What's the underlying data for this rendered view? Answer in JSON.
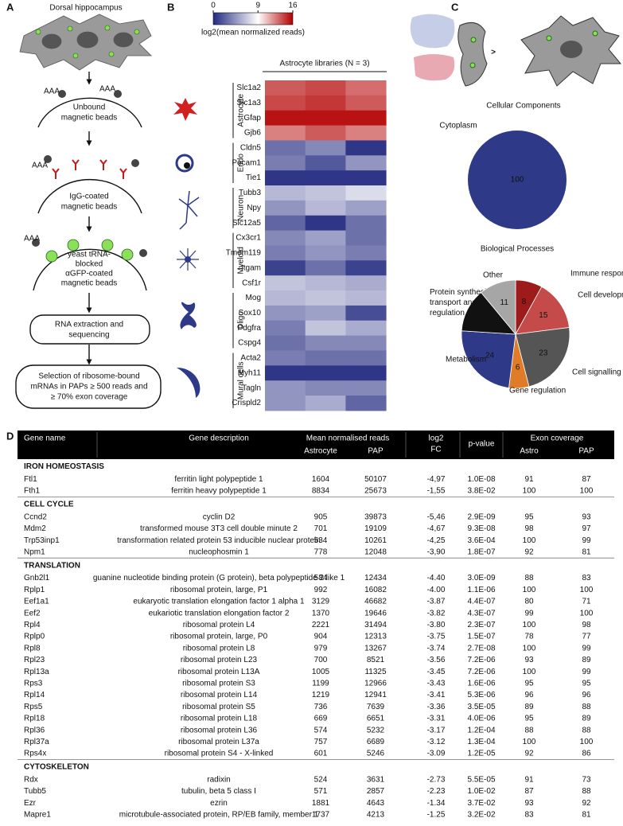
{
  "panel_a": {
    "label": "A",
    "title": "Dorsal hippocampus",
    "aaa": "AAA",
    "steps": [
      {
        "lines": [
          "Unbound",
          "magnetic beads"
        ]
      },
      {
        "lines": [
          "IgG-coated",
          "magnetic beads"
        ]
      },
      {
        "lines": [
          "yeast tRNA-",
          "blocked",
          "αGFP-coated",
          "magnetic beads"
        ]
      },
      {
        "lines": [
          "RNA extraction and",
          "sequencing"
        ]
      },
      {
        "lines": [
          "Selection of ribosome-bound",
          "mRNAs in PAPs ≥  500 reads and",
          "≥ 70% exon coverage"
        ]
      }
    ]
  },
  "chart_data": [
    {
      "type": "heatmap",
      "panel_label": "B",
      "colorbar": {
        "label": "log2(mean normalized reads)",
        "lim": [
          0,
          16
        ],
        "ticks": [
          0,
          9,
          16
        ],
        "colors": [
          "#232a80",
          "#ffffff",
          "#b30000"
        ]
      },
      "column_title": "Astrocyte libraries (N = 3)",
      "groups": [
        {
          "name": "Astrocyte",
          "genes": [
            "Slc1a2",
            "Slc1a3",
            "Gfap",
            "Gjb6"
          ],
          "values": [
            [
              13.5,
              14,
              13
            ],
            [
              14,
              14.5,
              13.5
            ],
            [
              15.5,
              15.5,
              15.5
            ],
            [
              12.5,
              13.5,
              12.5
            ]
          ]
        },
        {
          "name": "Endo",
          "genes": [
            "Cldn5",
            "Pecam1",
            "Tie1"
          ],
          "values": [
            [
              3,
              4,
              0.5
            ],
            [
              3.5,
              2,
              4.5
            ],
            [
              0.5,
              0.5,
              0.5
            ]
          ]
        },
        {
          "name": "Neuron",
          "genes": [
            "Tubb3",
            "Npy",
            "Slc12a5"
          ],
          "values": [
            [
              6,
              6.5,
              7.5
            ],
            [
              4.5,
              6,
              5
            ],
            [
              2.5,
              0.5,
              3
            ]
          ]
        },
        {
          "name": "Myeloid",
          "genes": [
            "Cx3cr1",
            "Tmem119",
            "Itgam",
            "Csf1r"
          ],
          "values": [
            [
              4,
              5,
              3
            ],
            [
              3.5,
              4.5,
              3.5
            ],
            [
              1,
              3,
              1
            ],
            [
              6.5,
              6,
              5.5
            ]
          ]
        },
        {
          "name": "Oligo",
          "genes": [
            "Mog",
            "Sox10",
            "Pdgfra",
            "Cspg4"
          ],
          "values": [
            [
              6,
              6.5,
              6
            ],
            [
              4.5,
              5,
              1.5
            ],
            [
              3.5,
              6.5,
              5.5
            ],
            [
              3,
              4,
              4
            ]
          ]
        },
        {
          "name": "Mural cells",
          "genes": [
            "Acta2",
            "Myh11",
            "Tagln",
            "Crispld2"
          ],
          "values": [
            [
              3.5,
              3,
              3
            ],
            [
              0.5,
              0.5,
              0.5
            ],
            [
              4.5,
              4,
              4
            ],
            [
              4.5,
              5.5,
              2.5
            ]
          ]
        }
      ]
    },
    {
      "type": "pie",
      "panel_label": "C",
      "title": "Cellular Components",
      "categories": [
        "Cytoplasm"
      ],
      "values": [
        100
      ],
      "colors": [
        "#2e3a87"
      ]
    },
    {
      "type": "pie",
      "title": "Biological Processes",
      "categories": [
        "Immune response",
        "Cell development",
        "Cell signalling",
        "Gene regulation",
        "Metabolism",
        "Protein synthesis, transport and regulation",
        "Other"
      ],
      "values": [
        8,
        15,
        23,
        6,
        24,
        13,
        11
      ],
      "colors": [
        "#9e1b1b",
        "#c54b4b",
        "#555555",
        "#e07b27",
        "#2e3a87",
        "#111111",
        "#a6a6a6"
      ]
    }
  ],
  "panel_c": {
    "symbol": ">"
  },
  "table": {
    "label": "D",
    "header": {
      "gene_name": "Gene name",
      "gene_description": "Gene description",
      "mean_reads": "Mean normalised reads",
      "astrocyte": "Astrocyte",
      "pap": "PAP",
      "log2fc": [
        "log2",
        "FC"
      ],
      "p_value": "p-value",
      "exon_coverage": "Exon coverage",
      "astro": "Astro",
      "pap_cov": "PAP"
    },
    "sections": [
      {
        "title": "IRON HOMEOSTASIS",
        "rows": [
          [
            "Ftl1",
            "ferritin light polypeptide 1",
            "1604",
            "50107",
            "-4,97",
            "1.0E-08",
            "91",
            "87"
          ],
          [
            "Fth1",
            "ferritin heavy polypeptide 1",
            "8834",
            "25673",
            "-1,55",
            "3.8E-02",
            "100",
            "100"
          ]
        ]
      },
      {
        "title": "CELL CYCLE",
        "rows": [
          [
            "Ccnd2",
            "cyclin D2",
            "905",
            "39873",
            "-5,46",
            "2.9E-09",
            "95",
            "93"
          ],
          [
            "Mdm2",
            "transformed mouse 3T3 cell double minute 2",
            "701",
            "19109",
            "-4,67",
            "9.3E-08",
            "98",
            "97"
          ],
          [
            "Trp53inp1",
            "transformation related protein 53 inducible nuclear protein",
            "534",
            "10261",
            "-4,25",
            "3.6E-04",
            "100",
            "99"
          ],
          [
            "Npm1",
            "nucleophosmin 1",
            "778",
            "12048",
            "-3,90",
            "1.8E-07",
            "92",
            "81"
          ]
        ]
      },
      {
        "title": "TRANSLATION",
        "rows": [
          [
            "Gnb2l1",
            "guanine nucleotide binding protein (G protein), beta polypeptide 2 like 1",
            "584",
            "12434",
            "-4.40",
            "3.0E-09",
            "88",
            "83"
          ],
          [
            "Rplp1",
            "ribosomal protein, large, P1",
            "992",
            "16082",
            "-4.00",
            "1.1E-06",
            "100",
            "100"
          ],
          [
            "Eef1a1",
            "eukaryotic translation elongation factor 1 alpha 1",
            "3129",
            "46682",
            "-3.87",
            "4.4E-07",
            "80",
            "71"
          ],
          [
            "Eef2",
            "eukariotic translation elongation factor 2",
            "1370",
            "19646",
            "-3.82",
            "4.3E-07",
            "99",
            "100"
          ],
          [
            "Rpl4",
            "ribosomal protein L4",
            "2221",
            "31494",
            "-3.80",
            "2.3E-07",
            "100",
            "98"
          ],
          [
            "Rplp0",
            "ribosomal protein, large, P0",
            "904",
            "12313",
            "-3.75",
            "1.5E-07",
            "78",
            "77"
          ],
          [
            "Rpl8",
            "ribosomal protein L8",
            "979",
            "13267",
            "-3.74",
            "2.7E-08",
            "100",
            "99"
          ],
          [
            "Rpl23",
            "ribosomal protein L23",
            "700",
            "8521",
            "-3.56",
            "7.2E-06",
            "93",
            "89"
          ],
          [
            "Rpl13a",
            "ribosomal protein L13A",
            "1005",
            "11325",
            "-3.45",
            "7.2E-06",
            "100",
            "99"
          ],
          [
            "Rps3",
            "ribosomal protein S3",
            "1199",
            "12966",
            "-3.43",
            "1.6E-06",
            "95",
            "95"
          ],
          [
            "Rpl14",
            "ribosomal protein L14",
            "1219",
            "12941",
            "-3.41",
            "5.3E-06",
            "96",
            "96"
          ],
          [
            "Rps5",
            "ribosomal protein S5",
            "736",
            "7639",
            "-3.36",
            "3.5E-05",
            "89",
            "88"
          ],
          [
            "Rpl18",
            "ribosomal protein L18",
            "669",
            "6651",
            "-3.31",
            "4.0E-06",
            "95",
            "89"
          ],
          [
            "Rpl36",
            "ribosomal protein L36",
            "574",
            "5232",
            "-3.17",
            "1.2E-04",
            "88",
            "88"
          ],
          [
            "Rpl37a",
            "ribosomal protein L37a",
            "757",
            "6689",
            "-3.12",
            "1.3E-04",
            "100",
            "100"
          ],
          [
            "Rps4x",
            "ribosomal protein S4 - X-linked",
            "601",
            "5246",
            "-3.09",
            "1.2E-05",
            "92",
            "86"
          ]
        ]
      },
      {
        "title": "CYTOSKELETON",
        "rows": [
          [
            "Rdx",
            "radixin",
            "524",
            "3631",
            "-2.73",
            "5.5E-05",
            "91",
            "73"
          ],
          [
            "Tubb5",
            "tubulin, beta 5 class I",
            "571",
            "2857",
            "-2.23",
            "1.0E-02",
            "87",
            "88"
          ],
          [
            "Ezr",
            "ezrin",
            "1881",
            "4643",
            "-1.34",
            "3.7E-02",
            "93",
            "92"
          ],
          [
            "Mapre1",
            "microtubule-associated protein, RP/EB family, member 1",
            "1737",
            "4213",
            "-1.25",
            "3.2E-02",
            "83",
            "81"
          ]
        ]
      }
    ]
  }
}
